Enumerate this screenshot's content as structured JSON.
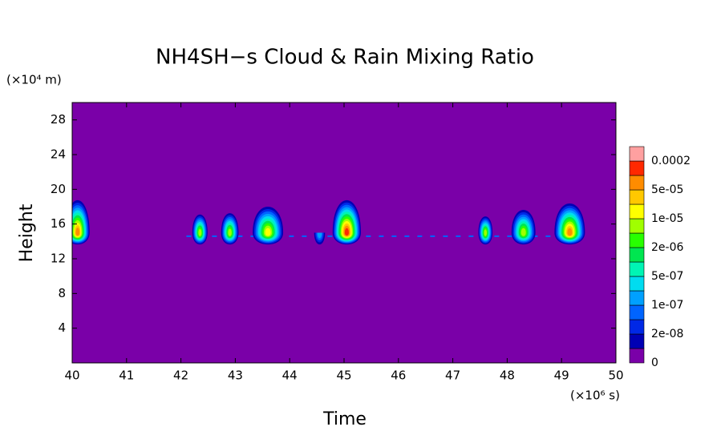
{
  "chart_data": {
    "type": "contour",
    "title": "NH4SH−s Cloud & Rain Mixing Ratio",
    "x_label": "Time",
    "y_label": "Height",
    "x_unit": "(×10⁶ s)",
    "y_unit": "(×10⁴ m)",
    "xlim": [
      40,
      50
    ],
    "xticks": [
      40,
      41,
      42,
      43,
      44,
      45,
      46,
      47,
      48,
      49,
      50
    ],
    "ylim": [
      0,
      30
    ],
    "yticks": [
      4,
      8,
      12,
      16,
      20,
      24,
      28
    ],
    "background_color": "#7a00a8",
    "colorbar": {
      "colors": [
        "#7a00a8",
        "#0000b4",
        "#0028e6",
        "#0064ff",
        "#00a0ff",
        "#00dcf0",
        "#00f5b4",
        "#00e650",
        "#28ff00",
        "#a0ff00",
        "#ffff00",
        "#ffc800",
        "#ff8c00",
        "#ff2800",
        "#ffa0a0"
      ],
      "ticks": [
        0,
        {
          "value": 2e-08,
          "label": "2e-08"
        },
        {
          "value": 1e-07,
          "label": "1e-07"
        },
        {
          "value": 5e-07,
          "label": "5e-07"
        },
        {
          "value": 2e-06,
          "label": "2e-06"
        },
        {
          "value": 1e-05,
          "label": "1e-05"
        },
        {
          "value": 5e-05,
          "label": "5e-05"
        },
        0.0002
      ]
    }
  }
}
